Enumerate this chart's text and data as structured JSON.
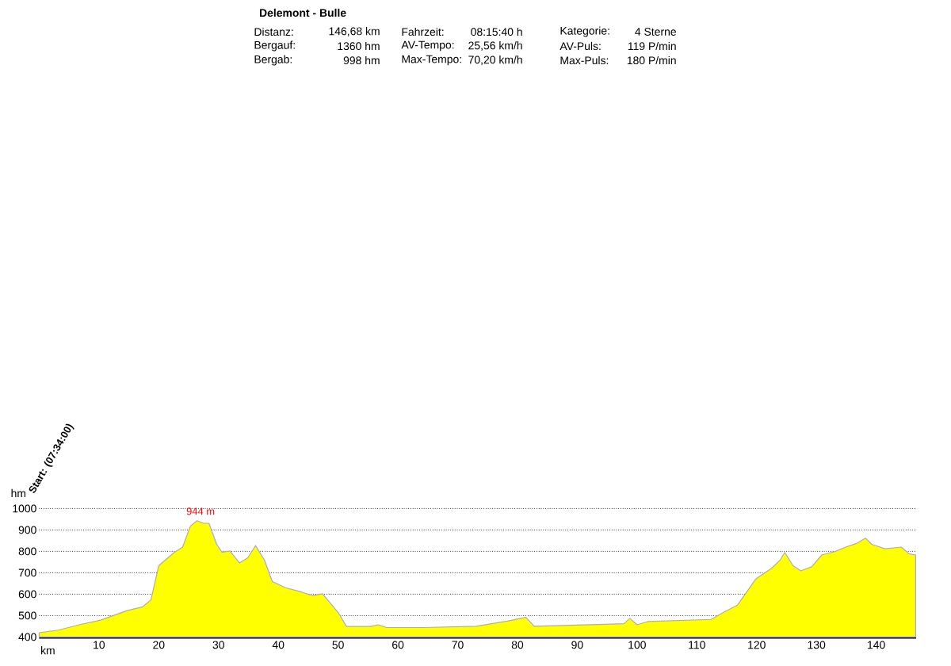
{
  "chart_data": {
    "type": "area",
    "title": "Delemont - Bulle",
    "xlabel": "km",
    "ylabel": "hm",
    "xlim": [
      0,
      146.68
    ],
    "ylim": [
      400,
      1000
    ],
    "xticks": [
      10,
      20,
      30,
      40,
      50,
      60,
      70,
      80,
      90,
      100,
      110,
      120,
      130,
      140
    ],
    "yticks": [
      400,
      500,
      600,
      700,
      800,
      900,
      1000
    ],
    "grid": "y",
    "color": "#ffff00",
    "x": [
      0,
      3.2,
      6.7,
      10.3,
      14.7,
      17.3,
      18.7,
      20,
      22.6,
      24,
      25.3,
      26.4,
      27.5,
      28.4,
      29.7,
      30.6,
      31.9,
      33.5,
      34.9,
      36.2,
      37.7,
      39,
      41.2,
      43.9,
      45.7,
      47.4,
      50.1,
      51.4,
      55.4,
      56.7,
      58.1,
      64.2,
      73.1,
      78.3,
      81.4,
      82.8,
      97.8,
      98.8,
      100,
      101.8,
      112.4,
      114.6,
      116.8,
      119.9,
      122.5,
      123.9,
      124.7,
      126.1,
      127.4,
      129.2,
      130.9,
      133.2,
      134.9,
      136.7,
      138.2,
      139.3,
      141.5,
      144.2,
      145.5,
      146.6
    ],
    "values": [
      420,
      432,
      457,
      479,
      523,
      541,
      573,
      733,
      795,
      820,
      918,
      943,
      931,
      931,
      832,
      795,
      802,
      746,
      770,
      827,
      758,
      659,
      630,
      610,
      593,
      602,
      511,
      449,
      449,
      457,
      444,
      444,
      450,
      474,
      492,
      450,
      462,
      487,
      457,
      472,
      482,
      517,
      549,
      672,
      721,
      758,
      795,
      733,
      709,
      728,
      783,
      800,
      820,
      837,
      862,
      832,
      812,
      820,
      788,
      783
    ],
    "annotations": [
      {
        "text": "944 m",
        "x": 27,
        "y": 944
      },
      "Start: (07:34:00)",
      "Distanz:",
      "146,68 km",
      "Fahrzeit:",
      "08:15:40 h",
      "Kategorie:",
      "4 Sterne",
      "Bergauf:",
      "1360 hm",
      "AV-Tempo:",
      "25,56 km/h",
      "AV-Puls:",
      "119 P/min",
      "Bergab:",
      "998 hm",
      "Max-Tempo:",
      "70,20 km/h",
      "Max-Puls:",
      "180 P/min"
    ]
  }
}
